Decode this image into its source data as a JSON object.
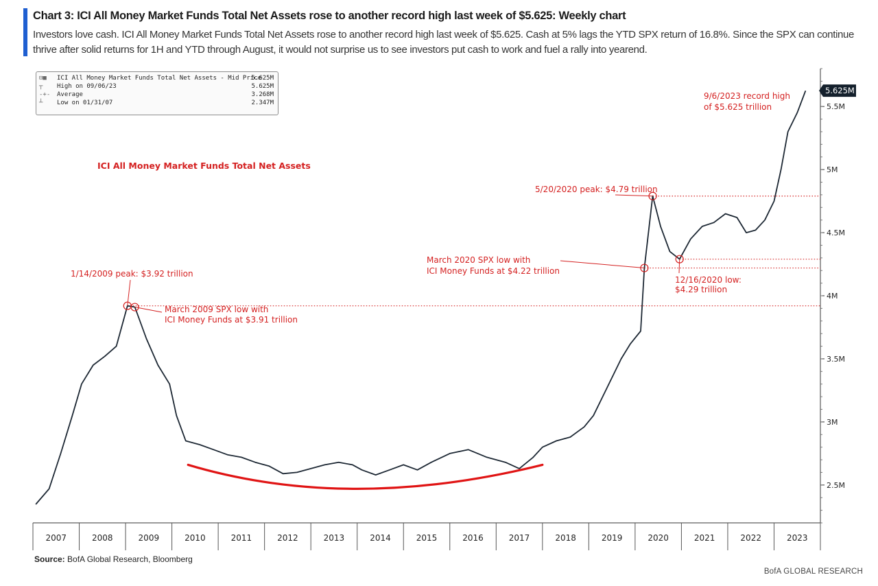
{
  "header": {
    "title": "Chart 3: ICI All Money Market Funds Total Net Assets rose to another record high last week of $5.625: Weekly chart",
    "subtitle": "Investors love cash. ICI All Money Market Funds Total Net Assets rose to another record high last week of $5.625. Cash at 5% lags the YTD SPX return of 16.8%. Since the SPX can continue thrive after solid returns for 1H and YTD through August, it would not surprise us to see investors put cash to work and fuel a rally into yearend.",
    "accent_color": "#1f5fd1"
  },
  "legend": {
    "rows": [
      {
        "glyph": "⊟■",
        "label": "ICI All Money Market Funds Total Net Assets - Mid Price",
        "value": "5.625M"
      },
      {
        "glyph": "┬",
        "label": "High on 09/06/23",
        "value": "5.625M"
      },
      {
        "glyph": "-+-",
        "label": "Average",
        "value": "3.268M"
      },
      {
        "glyph": "┴",
        "label": "Low on 01/31/07",
        "value": "2.347M"
      }
    ]
  },
  "series_label": "ICI All Money Market Funds Total Net Assets",
  "last_value_tag": "5.625M",
  "annotations": {
    "record_high_1": "9/6/2023 record high",
    "record_high_2": "of $5.625 trillion",
    "peak_2020": "5/20/2020 peak: $4.79 trillion",
    "spx_low_2020_1": "March 2020 SPX low with",
    "spx_low_2020_2": "ICI Money Funds at $4.22 trillion",
    "low_2020_1": "12/16/2020 low:",
    "low_2020_2": "$4.29 trillion",
    "peak_2009": "1/14/2009 peak: $3.92 trillion",
    "spx_low_2009_1": "March 2009 SPX low with",
    "spx_low_2009_2": "ICI Money Funds at $3.91 trillion"
  },
  "colors": {
    "line": "#1c2733",
    "annotation": "#d42020",
    "axis": "#333333"
  },
  "chart_data": {
    "type": "line",
    "series": [
      {
        "name": "ICI All Money Market Funds Total Net Assets",
        "points": [
          [
            2007.06,
            2.347
          ],
          [
            2007.35,
            2.47
          ],
          [
            2007.6,
            2.75
          ],
          [
            2007.85,
            3.05
          ],
          [
            2008.05,
            3.3
          ],
          [
            2008.3,
            3.45
          ],
          [
            2008.55,
            3.52
          ],
          [
            2008.8,
            3.6
          ],
          [
            2009.04,
            3.92
          ],
          [
            2009.2,
            3.91
          ],
          [
            2009.45,
            3.66
          ],
          [
            2009.7,
            3.45
          ],
          [
            2009.95,
            3.3
          ],
          [
            2010.1,
            3.05
          ],
          [
            2010.3,
            2.85
          ],
          [
            2010.6,
            2.82
          ],
          [
            2010.9,
            2.78
          ],
          [
            2011.2,
            2.74
          ],
          [
            2011.5,
            2.72
          ],
          [
            2011.8,
            2.68
          ],
          [
            2012.1,
            2.65
          ],
          [
            2012.4,
            2.59
          ],
          [
            2012.7,
            2.6
          ],
          [
            2013.0,
            2.63
          ],
          [
            2013.3,
            2.66
          ],
          [
            2013.6,
            2.68
          ],
          [
            2013.9,
            2.66
          ],
          [
            2014.1,
            2.62
          ],
          [
            2014.4,
            2.58
          ],
          [
            2014.7,
            2.62
          ],
          [
            2015.0,
            2.66
          ],
          [
            2015.3,
            2.62
          ],
          [
            2015.6,
            2.68
          ],
          [
            2016.0,
            2.75
          ],
          [
            2016.4,
            2.78
          ],
          [
            2016.8,
            2.72
          ],
          [
            2017.2,
            2.68
          ],
          [
            2017.5,
            2.63
          ],
          [
            2017.8,
            2.72
          ],
          [
            2018.0,
            2.8
          ],
          [
            2018.3,
            2.85
          ],
          [
            2018.6,
            2.88
          ],
          [
            2018.9,
            2.96
          ],
          [
            2019.1,
            3.05
          ],
          [
            2019.3,
            3.2
          ],
          [
            2019.5,
            3.35
          ],
          [
            2019.7,
            3.5
          ],
          [
            2019.9,
            3.62
          ],
          [
            2020.12,
            3.72
          ],
          [
            2020.2,
            4.22
          ],
          [
            2020.38,
            4.79
          ],
          [
            2020.55,
            4.55
          ],
          [
            2020.75,
            4.35
          ],
          [
            2020.96,
            4.29
          ],
          [
            2021.2,
            4.45
          ],
          [
            2021.45,
            4.55
          ],
          [
            2021.7,
            4.58
          ],
          [
            2021.95,
            4.65
          ],
          [
            2022.2,
            4.62
          ],
          [
            2022.4,
            4.5
          ],
          [
            2022.6,
            4.52
          ],
          [
            2022.8,
            4.6
          ],
          [
            2023.0,
            4.75
          ],
          [
            2023.15,
            5.0
          ],
          [
            2023.3,
            5.3
          ],
          [
            2023.5,
            5.45
          ],
          [
            2023.68,
            5.625
          ]
        ]
      }
    ],
    "x_tick_labels": [
      "2007",
      "2008",
      "2009",
      "2010",
      "2011",
      "2012",
      "2013",
      "2014",
      "2015",
      "2016",
      "2017",
      "2018",
      "2019",
      "2020",
      "2021",
      "2022",
      "2023"
    ],
    "y_tick_labels": [
      "2.5M",
      "3M",
      "3.5M",
      "4M",
      "4.5M",
      "5M",
      "5.5M"
    ],
    "xlim": [
      2007.0,
      2024.0
    ],
    "ylim": [
      2.2,
      5.8
    ],
    "y_axis_side": "right",
    "legend_position": "top-left",
    "grid": false,
    "reference_levels": [
      3.92,
      4.79,
      4.22,
      4.29
    ],
    "trend_arc": {
      "x": [
        2010.35,
        2014.0,
        2018.0
      ],
      "y": [
        2.66,
        2.47,
        2.66
      ]
    }
  },
  "source": {
    "label": "Source:",
    "text": "BofA Global Research, Bloomberg"
  },
  "brand": "BofA GLOBAL RESEARCH"
}
